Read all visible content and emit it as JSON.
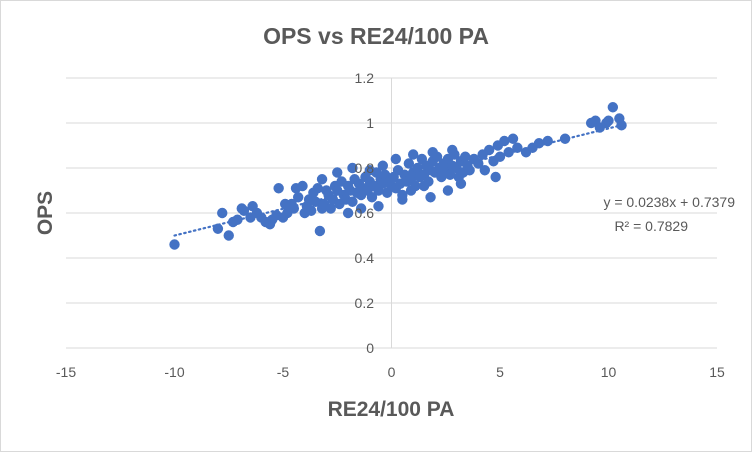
{
  "chart_data": {
    "type": "scatter",
    "title": "OPS vs RE24/100 PA",
    "xlabel": "RE24/100 PA",
    "ylabel": "OPS",
    "xlim": [
      -15,
      15
    ],
    "ylim": [
      0,
      1.2
    ],
    "x_ticks": [
      "-15",
      "-10",
      "-5",
      "0",
      "5",
      "10",
      "15"
    ],
    "y_ticks": [
      "0",
      "0.2",
      "0.4",
      "0.6",
      "0.8",
      "1",
      "1.2"
    ],
    "grid": "horizontal",
    "series": [
      {
        "name": "OPS",
        "color": "#4472c4",
        "points": [
          [
            -10.0,
            0.46
          ],
          [
            -8.0,
            0.53
          ],
          [
            -7.8,
            0.6
          ],
          [
            -7.5,
            0.5
          ],
          [
            -7.3,
            0.56
          ],
          [
            -7.1,
            0.57
          ],
          [
            -6.9,
            0.62
          ],
          [
            -6.8,
            0.61
          ],
          [
            -6.5,
            0.58
          ],
          [
            -6.4,
            0.63
          ],
          [
            -6.2,
            0.6
          ],
          [
            -6.0,
            0.58
          ],
          [
            -5.8,
            0.56
          ],
          [
            -5.6,
            0.55
          ],
          [
            -5.5,
            0.57
          ],
          [
            -5.3,
            0.59
          ],
          [
            -5.2,
            0.71
          ],
          [
            -5.0,
            0.58
          ],
          [
            -4.8,
            0.6
          ],
          [
            -4.6,
            0.64
          ],
          [
            -4.5,
            0.62
          ],
          [
            -4.4,
            0.71
          ],
          [
            -4.3,
            0.67
          ],
          [
            -4.1,
            0.72
          ],
          [
            -4.0,
            0.6
          ],
          [
            -3.9,
            0.63
          ],
          [
            -3.8,
            0.66
          ],
          [
            -3.7,
            0.61
          ],
          [
            -3.6,
            0.69
          ],
          [
            -3.5,
            0.65
          ],
          [
            -3.4,
            0.71
          ],
          [
            -3.3,
            0.52
          ],
          [
            -3.2,
            0.62
          ],
          [
            -3.1,
            0.64
          ],
          [
            -3.0,
            0.7
          ],
          [
            -2.9,
            0.68
          ],
          [
            -2.8,
            0.62
          ],
          [
            -2.7,
            0.66
          ],
          [
            -2.6,
            0.72
          ],
          [
            -2.5,
            0.7
          ],
          [
            -2.4,
            0.64
          ],
          [
            -2.3,
            0.74
          ],
          [
            -2.2,
            0.68
          ],
          [
            -2.1,
            0.66
          ],
          [
            -2.0,
            0.72
          ],
          [
            -1.9,
            0.7
          ],
          [
            -1.8,
            0.65
          ],
          [
            -1.7,
            0.75
          ],
          [
            -1.6,
            0.69
          ],
          [
            -1.5,
            0.73
          ],
          [
            -1.4,
            0.68
          ],
          [
            -1.3,
            0.71
          ],
          [
            -1.2,
            0.76
          ],
          [
            -1.1,
            0.7
          ],
          [
            -1.0,
            0.74
          ],
          [
            -0.9,
            0.67
          ],
          [
            -0.8,
            0.72
          ],
          [
            -0.7,
            0.78
          ],
          [
            -0.6,
            0.7
          ],
          [
            -0.5,
            0.75
          ],
          [
            -0.4,
            0.73
          ],
          [
            -0.3,
            0.77
          ],
          [
            -0.2,
            0.69
          ],
          [
            -0.1,
            0.74
          ],
          [
            0.0,
            0.72
          ],
          [
            0.1,
            0.76
          ],
          [
            0.2,
            0.71
          ],
          [
            0.3,
            0.79
          ],
          [
            0.4,
            0.73
          ],
          [
            0.5,
            0.68
          ],
          [
            0.6,
            0.77
          ],
          [
            0.7,
            0.74
          ],
          [
            0.8,
            0.82
          ],
          [
            0.9,
            0.75
          ],
          [
            1.0,
            0.78
          ],
          [
            1.1,
            0.72
          ],
          [
            1.2,
            0.8
          ],
          [
            1.3,
            0.76
          ],
          [
            1.4,
            0.84
          ],
          [
            1.5,
            0.77
          ],
          [
            1.6,
            0.81
          ],
          [
            1.7,
            0.74
          ],
          [
            1.8,
            0.79
          ],
          [
            1.9,
            0.83
          ],
          [
            2.0,
            0.78
          ],
          [
            2.1,
            0.85
          ],
          [
            2.2,
            0.8
          ],
          [
            2.3,
            0.76
          ],
          [
            2.4,
            0.82
          ],
          [
            2.5,
            0.79
          ],
          [
            2.6,
            0.84
          ],
          [
            2.7,
            0.77
          ],
          [
            2.8,
            0.81
          ],
          [
            2.9,
            0.86
          ],
          [
            3.0,
            0.8
          ],
          [
            3.1,
            0.76
          ],
          [
            3.2,
            0.83
          ],
          [
            3.3,
            0.78
          ],
          [
            3.4,
            0.85
          ],
          [
            3.5,
            0.81
          ],
          [
            3.6,
            0.79
          ],
          [
            3.8,
            0.84
          ],
          [
            4.0,
            0.82
          ],
          [
            4.2,
            0.86
          ],
          [
            4.3,
            0.79
          ],
          [
            4.5,
            0.88
          ],
          [
            4.7,
            0.83
          ],
          [
            4.9,
            0.9
          ],
          [
            5.0,
            0.85
          ],
          [
            5.2,
            0.92
          ],
          [
            5.4,
            0.87
          ],
          [
            5.6,
            0.93
          ],
          [
            5.8,
            0.89
          ],
          [
            6.2,
            0.87
          ],
          [
            6.5,
            0.89
          ],
          [
            6.8,
            0.91
          ],
          [
            7.2,
            0.92
          ],
          [
            8.0,
            0.93
          ],
          [
            9.2,
            1.0
          ],
          [
            9.4,
            1.01
          ],
          [
            9.6,
            0.98
          ],
          [
            9.9,
            1.0
          ],
          [
            10.0,
            1.01
          ],
          [
            10.2,
            1.07
          ],
          [
            10.5,
            1.02
          ],
          [
            10.6,
            0.99
          ],
          [
            -2.5,
            0.78
          ],
          [
            -1.8,
            0.8
          ],
          [
            -1.0,
            0.79
          ],
          [
            -0.4,
            0.81
          ],
          [
            0.2,
            0.84
          ],
          [
            0.5,
            0.66
          ],
          [
            -0.6,
            0.63
          ],
          [
            -1.4,
            0.62
          ],
          [
            1.8,
            0.67
          ],
          [
            2.6,
            0.7
          ],
          [
            3.2,
            0.73
          ],
          [
            4.8,
            0.76
          ],
          [
            1.0,
            0.86
          ],
          [
            1.9,
            0.87
          ],
          [
            2.8,
            0.88
          ],
          [
            -3.2,
            0.75
          ],
          [
            -2.0,
            0.6
          ],
          [
            -4.9,
            0.64
          ],
          [
            0.9,
            0.7
          ],
          [
            1.5,
            0.72
          ]
        ]
      }
    ],
    "trendline": {
      "type": "linear",
      "slope": 0.0238,
      "intercept": 0.7379,
      "x_range": [
        -10,
        10.5
      ],
      "style": "dotted",
      "equation_label": "y = 0.0238x + 0.7379",
      "r2_label": "R² = 0.7829"
    }
  }
}
